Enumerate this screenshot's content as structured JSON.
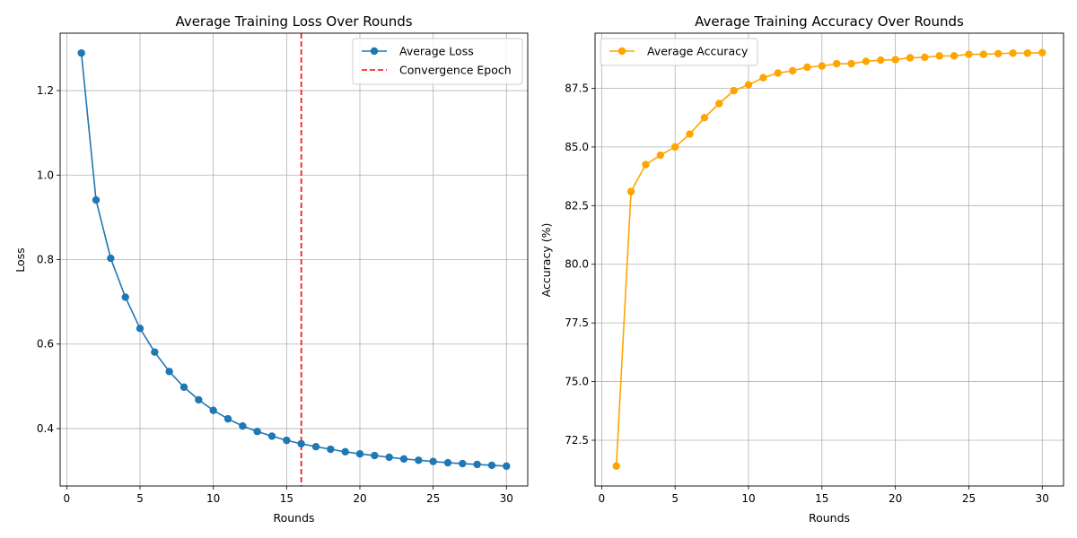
{
  "chart_data": [
    {
      "type": "line",
      "title": "Average Training Loss Over Rounds",
      "xlabel": "Rounds",
      "ylabel": "Loss",
      "xlim": [
        -0.45,
        31.45
      ],
      "ylim": [
        0.264,
        1.336
      ],
      "xticks": [
        0,
        5,
        10,
        15,
        20,
        25,
        30
      ],
      "yticks": [
        0.4,
        0.6,
        0.8,
        1.0,
        1.2
      ],
      "ytick_labels": [
        "0.4",
        "0.6",
        "0.8",
        "1.0",
        "1.2"
      ],
      "grid": true,
      "legend_position": "top-right",
      "series": [
        {
          "name": "Average Loss",
          "color": "#1f77b4",
          "marker": "circle",
          "x": [
            1,
            2,
            3,
            4,
            5,
            6,
            7,
            8,
            9,
            10,
            11,
            12,
            13,
            14,
            15,
            16,
            17,
            18,
            19,
            20,
            21,
            22,
            23,
            24,
            25,
            26,
            27,
            28,
            29,
            30
          ],
          "y": [
            1.289,
            0.941,
            0.803,
            0.711,
            0.637,
            0.581,
            0.535,
            0.498,
            0.468,
            0.443,
            0.423,
            0.406,
            0.393,
            0.382,
            0.372,
            0.364,
            0.357,
            0.351,
            0.345,
            0.34,
            0.336,
            0.332,
            0.328,
            0.325,
            0.322,
            0.319,
            0.317,
            0.315,
            0.313,
            0.311
          ]
        }
      ],
      "vline": {
        "name": "Convergence Epoch",
        "x": 16,
        "color": "#ff0000",
        "style": "dashed"
      }
    },
    {
      "type": "line",
      "title": "Average Training Accuracy Over Rounds",
      "xlabel": "Rounds",
      "ylabel": "Accuracy (%)",
      "xlim": [
        -0.45,
        31.45
      ],
      "ylim": [
        70.55,
        89.85
      ],
      "xticks": [
        0,
        5,
        10,
        15,
        20,
        25,
        30
      ],
      "yticks": [
        72.5,
        75.0,
        77.5,
        80.0,
        82.5,
        85.0,
        87.5
      ],
      "ytick_labels": [
        "72.5",
        "75.0",
        "77.5",
        "80.0",
        "82.5",
        "85.0",
        "87.5"
      ],
      "grid": true,
      "legend_position": "top-left",
      "series": [
        {
          "name": "Average Accuracy",
          "color": "#ffa500",
          "marker": "circle",
          "x": [
            1,
            2,
            3,
            4,
            5,
            6,
            7,
            8,
            9,
            10,
            11,
            12,
            13,
            14,
            15,
            16,
            17,
            18,
            19,
            20,
            21,
            22,
            23,
            24,
            25,
            26,
            27,
            28,
            29,
            30
          ],
          "y": [
            71.4,
            83.1,
            84.25,
            84.65,
            85.0,
            85.55,
            86.25,
            86.85,
            87.4,
            87.65,
            87.95,
            88.15,
            88.25,
            88.4,
            88.45,
            88.55,
            88.55,
            88.65,
            88.7,
            88.72,
            88.8,
            88.82,
            88.88,
            88.88,
            88.95,
            88.95,
            88.98,
            89.0,
            89.0,
            89.02
          ]
        }
      ]
    }
  ]
}
